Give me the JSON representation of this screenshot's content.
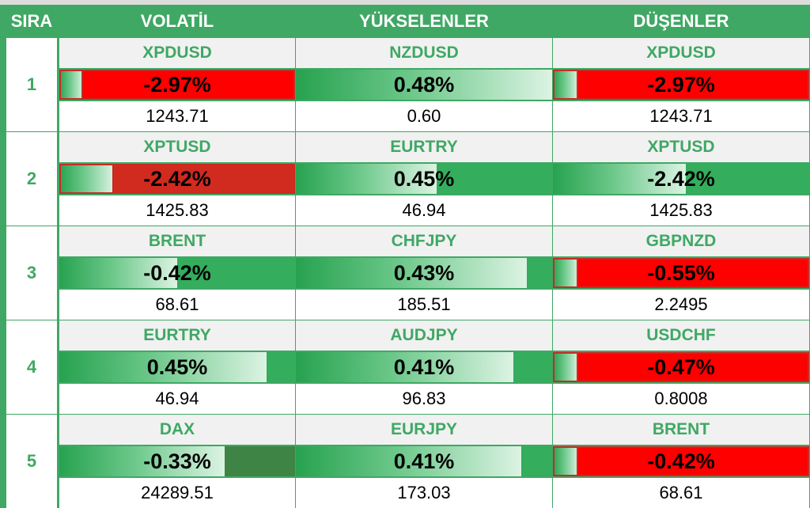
{
  "headers": {
    "sira": "SIRA",
    "volatil": "VOLATİL",
    "yukselenler": "YÜKSELENLER",
    "dusenler": "DÜŞENLER"
  },
  "rows": [
    {
      "rank": "1",
      "volatil": {
        "symbol": "XPDUSD",
        "change": "-2.97%",
        "price": "1243.71",
        "level": 0.1,
        "bar": "red"
      },
      "yukselenler": {
        "symbol": "NZDUSD",
        "change": "0.48%",
        "price": "0.60",
        "level": 1.0,
        "bar": "green"
      },
      "dusenler": {
        "symbol": "XPDUSD",
        "change": "-2.97%",
        "price": "1243.71",
        "level": 0.1,
        "bar": "red"
      }
    },
    {
      "rank": "2",
      "volatil": {
        "symbol": "XPTUSD",
        "change": "-2.42%",
        "price": "1425.83",
        "level": 0.23,
        "bar": "darkred"
      },
      "yukselenler": {
        "symbol": "EURTRY",
        "change": "0.45%",
        "price": "46.94",
        "level": 0.55,
        "bar": "green"
      },
      "dusenler": {
        "symbol": "XPTUSD",
        "change": "-2.42%",
        "price": "1425.83",
        "level": 0.52,
        "bar": "green"
      }
    },
    {
      "rank": "3",
      "volatil": {
        "symbol": "BRENT",
        "change": "-0.42%",
        "price": "68.61",
        "level": 0.5,
        "bar": "green"
      },
      "yukselenler": {
        "symbol": "CHFJPY",
        "change": "0.43%",
        "price": "185.51",
        "level": 0.9,
        "bar": "green"
      },
      "dusenler": {
        "symbol": "GBPNZD",
        "change": "-0.55%",
        "price": "2.2495",
        "level": 0.1,
        "bar": "red"
      }
    },
    {
      "rank": "4",
      "volatil": {
        "symbol": "EURTRY",
        "change": "0.45%",
        "price": "46.94",
        "level": 0.88,
        "bar": "green"
      },
      "yukselenler": {
        "symbol": "AUDJPY",
        "change": "0.41%",
        "price": "96.83",
        "level": 0.85,
        "bar": "green"
      },
      "dusenler": {
        "symbol": "USDCHF",
        "change": "-0.47%",
        "price": "0.8008",
        "level": 0.1,
        "bar": "red"
      }
    },
    {
      "rank": "5",
      "volatil": {
        "symbol": "DAX",
        "change": "-0.33%",
        "price": "24289.51",
        "level": 0.7,
        "bar": "olive"
      },
      "yukselenler": {
        "symbol": "EURJPY",
        "change": "0.41%",
        "price": "173.03",
        "level": 0.88,
        "bar": "green"
      },
      "dusenler": {
        "symbol": "BRENT",
        "change": "-0.42%",
        "price": "68.61",
        "level": 0.1,
        "bar": "red"
      }
    }
  ]
}
